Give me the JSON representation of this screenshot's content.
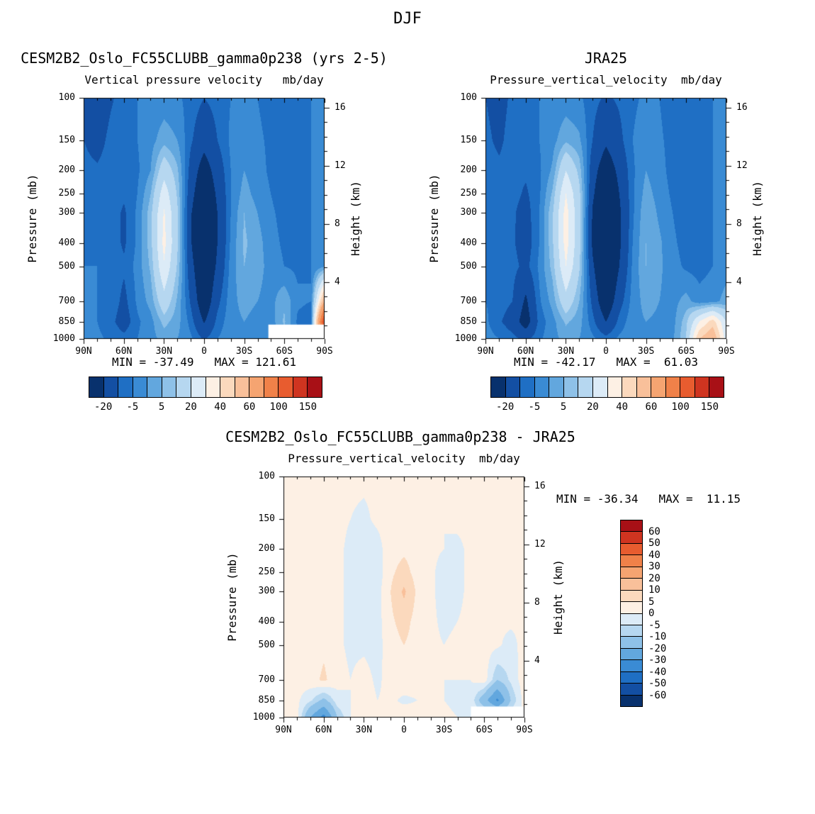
{
  "page": {
    "title": "DJF"
  },
  "axis": {
    "pressure_label": "Pressure (mb)",
    "height_label": "Height (km)",
    "pressure_ticks": [
      100,
      150,
      200,
      250,
      300,
      400,
      500,
      700,
      850,
      1000
    ],
    "height_ticks": [
      16,
      12,
      8,
      4
    ],
    "lat_tick_values": [
      90,
      60,
      30,
      0,
      -30,
      -60,
      -90
    ],
    "lat_tick_labels": [
      "90N",
      "60N",
      "30N",
      "0",
      "30S",
      "60S",
      "90S"
    ]
  },
  "colors": {
    "palette": [
      "#08316d",
      "#134fa3",
      "#1f6fc4",
      "#3a8bd4",
      "#62a7de",
      "#8ec1e8",
      "#b6d7f0",
      "#dcebf7",
      "#fdf0e4",
      "#fbd9bd",
      "#f9c09a",
      "#f5a471",
      "#f08149",
      "#e85c2f",
      "#cf3420",
      "#a81016"
    ],
    "edges": [
      -20,
      -10,
      -5,
      0,
      5,
      10,
      20,
      30,
      40,
      50,
      60,
      80,
      100,
      125,
      150
    ],
    "diff_edges": [
      -60,
      -50,
      -40,
      -30,
      -20,
      -10,
      -5,
      0,
      5,
      10,
      20,
      30,
      40,
      50,
      60
    ]
  },
  "colorbar": {
    "horizontal_labels": [
      "-20",
      "-5",
      "5",
      "20",
      "40",
      "60",
      "100",
      "150"
    ],
    "vertical_labels": [
      "60",
      "50",
      "40",
      "30",
      "20",
      "10",
      "5",
      "0",
      "-5",
      "-10",
      "-20",
      "-30",
      "-40",
      "-50",
      "-60"
    ]
  },
  "panels": {
    "model": {
      "title": "CESM2B2_Oslo_FC55CLUBB_gamma0p238 (yrs 2-5)",
      "subtitle": "Vertical pressure velocity   mb/day",
      "minmax": "MIN = -37.49   MAX = 121.61"
    },
    "obs": {
      "title": "JRA25",
      "subtitle": "Pressure_vertical_velocity  mb/day",
      "minmax": "MIN = -42.17   MAX =  61.03"
    },
    "diff": {
      "title": "CESM2B2_Oslo_FC55CLUBB_gamma0p238 - JRA25",
      "subtitle": "Pressure_vertical_velocity  mb/day",
      "minmax": "MIN = -36.34   MAX =  11.15"
    }
  },
  "chart_data": [
    {
      "key": "model",
      "name": "CESM2B2_Oslo_FC55CLUBB_gamma0p238 (yrs 2-5)",
      "type": "heatmap",
      "quantity": "Vertical pressure velocity",
      "units": "mb/day",
      "min": -37.49,
      "max": 121.61,
      "x_latitudes": [
        90,
        80,
        70,
        60,
        50,
        40,
        30,
        20,
        10,
        0,
        -10,
        -20,
        -30,
        -40,
        -50,
        -60,
        -70,
        -80,
        -90
      ],
      "y_pressures_mb": [
        100,
        150,
        200,
        250,
        300,
        400,
        500,
        700,
        850,
        1000
      ],
      "values": [
        [
          -12,
          -16,
          -11,
          -7,
          -5,
          -4,
          -3,
          -4,
          -7,
          -10,
          -8,
          -5,
          -4,
          -5,
          -7,
          -9,
          -6,
          -5,
          -4
        ],
        [
          -10,
          -13,
          -8,
          -6,
          -5,
          -2,
          3,
          0,
          -9,
          -16,
          -10,
          -4,
          -2,
          -4,
          -6,
          -8,
          -6,
          -5,
          -4
        ],
        [
          -8,
          -9,
          -7,
          -8,
          -6,
          0,
          16,
          6,
          -13,
          -26,
          -15,
          -5,
          0,
          -3,
          -6,
          -8,
          -6,
          -5,
          -4
        ],
        [
          -7,
          -7,
          -7,
          -9,
          -5,
          5,
          26,
          9,
          -16,
          -31,
          -18,
          -5,
          2,
          -2,
          -5,
          -8,
          -6,
          -5,
          -4
        ],
        [
          -6,
          -6,
          -7,
          -11,
          -4,
          8,
          31,
          11,
          -19,
          -34,
          -20,
          -5,
          5,
          0,
          -4,
          -7,
          -6,
          -5,
          -3
        ],
        [
          -5,
          -6,
          -7,
          -11,
          -4,
          8,
          33,
          11,
          -19,
          -36,
          -20,
          -4,
          6,
          2,
          -3,
          -6,
          -6,
          -5,
          -2
        ],
        [
          -5,
          -5,
          -6,
          -9,
          -3,
          6,
          29,
          9,
          -16,
          -33,
          -18,
          -3,
          5,
          2,
          -2,
          -5,
          -6,
          -5,
          -1
        ],
        [
          -4,
          -5,
          -6,
          -12,
          -4,
          2,
          16,
          4,
          -11,
          -29,
          -12,
          -2,
          2,
          0,
          -2,
          4,
          -4,
          -5,
          60
        ],
        [
          -4,
          -5,
          -8,
          -14,
          -6,
          -2,
          7,
          2,
          -7,
          -21,
          -8,
          -2,
          0,
          -2,
          -3,
          6,
          -6,
          -8,
          122
        ],
        [
          -3,
          -4,
          -6,
          -8,
          -5,
          -2,
          2,
          0,
          -4,
          -11,
          -5,
          -2,
          -1,
          -2,
          -2,
          2,
          -4,
          -8,
          100
        ]
      ],
      "missing": [
        {
          "lat": [
            -48,
            -90
          ],
          "p": [
            872,
            1000
          ]
        }
      ]
    },
    {
      "key": "obs",
      "name": "JRA25",
      "type": "heatmap",
      "quantity": "Pressure_vertical_velocity",
      "units": "mb/day",
      "min": -42.17,
      "max": 61.03,
      "x_latitudes": [
        90,
        80,
        70,
        60,
        50,
        40,
        30,
        20,
        10,
        0,
        -10,
        -20,
        -30,
        -40,
        -50,
        -60,
        -70,
        -80,
        -90
      ],
      "y_pressures_mb": [
        100,
        150,
        200,
        250,
        300,
        400,
        500,
        700,
        850,
        1000
      ],
      "values": [
        [
          -10,
          -12,
          -9,
          -6,
          -5,
          -4,
          -3,
          -4,
          -8,
          -11,
          -9,
          -6,
          -4,
          -5,
          -8,
          -9,
          -7,
          -5,
          -4
        ],
        [
          -9,
          -11,
          -8,
          -6,
          -5,
          -2,
          4,
          1,
          -10,
          -18,
          -12,
          -5,
          -2,
          -4,
          -7,
          -9,
          -7,
          -5,
          -4
        ],
        [
          -8,
          -9,
          -8,
          -9,
          -6,
          1,
          20,
          8,
          -15,
          -28,
          -17,
          -6,
          0,
          -3,
          -7,
          -9,
          -7,
          -5,
          -4
        ],
        [
          -7,
          -8,
          -8,
          -11,
          -6,
          6,
          30,
          12,
          -18,
          -34,
          -20,
          -6,
          2,
          -2,
          -6,
          -8,
          -7,
          -5,
          -4
        ],
        [
          -6,
          -7,
          -9,
          -13,
          -5,
          9,
          34,
          13,
          -21,
          -40,
          -22,
          -6,
          4,
          -1,
          -5,
          -8,
          -7,
          -5,
          -3
        ],
        [
          -6,
          -7,
          -9,
          -14,
          -5,
          9,
          34,
          13,
          -22,
          -42,
          -22,
          -5,
          5,
          1,
          -4,
          -7,
          -7,
          -5,
          -3
        ],
        [
          -5,
          -6,
          -8,
          -12,
          -4,
          7,
          30,
          11,
          -18,
          -37,
          -20,
          -4,
          5,
          1,
          -3,
          -6,
          -7,
          -5,
          -2
        ],
        [
          -5,
          -7,
          -10,
          -22,
          -6,
          2,
          16,
          5,
          -12,
          -30,
          -13,
          -3,
          2,
          0,
          -2,
          2,
          -3,
          -2,
          2
        ],
        [
          -4,
          -9,
          -14,
          -26,
          -8,
          -2,
          6,
          2,
          -8,
          -20,
          -8,
          -2,
          0,
          -1,
          -2,
          8,
          30,
          45,
          20
        ],
        [
          -3,
          -5,
          -8,
          -12,
          -6,
          -2,
          2,
          0,
          -4,
          -8,
          -4,
          -2,
          -1,
          -1,
          -1,
          10,
          50,
          61,
          25
        ]
      ],
      "missing": []
    },
    {
      "key": "diff",
      "name": "CESM2B2_Oslo_FC55CLUBB_gamma0p238 - JRA25",
      "type": "heatmap",
      "quantity": "Pressure_vertical_velocity difference",
      "units": "mb/day",
      "min": -36.34,
      "max": 11.15,
      "x_latitudes": [
        90,
        80,
        70,
        60,
        50,
        40,
        30,
        20,
        10,
        0,
        -10,
        -20,
        -30,
        -40,
        -50,
        -60,
        -70,
        -80,
        -90
      ],
      "y_pressures_mb": [
        100,
        150,
        200,
        250,
        300,
        400,
        500,
        700,
        850,
        1000
      ],
      "values": [
        [
          2,
          2,
          1,
          1,
          1,
          1,
          1,
          1,
          2,
          2,
          2,
          1,
          1,
          1,
          2,
          2,
          1,
          1,
          1
        ],
        [
          2,
          2,
          1,
          1,
          1,
          0,
          -1,
          1,
          2,
          3,
          2,
          1,
          0,
          1,
          1,
          1,
          1,
          1,
          1
        ],
        [
          2,
          1,
          1,
          2,
          1,
          -1,
          -3,
          -2,
          3,
          4,
          3,
          1,
          0,
          -1,
          1,
          2,
          1,
          1,
          0
        ],
        [
          1,
          1,
          1,
          2,
          1,
          -1,
          -4,
          -3,
          4,
          7,
          3,
          1,
          -2,
          -1,
          1,
          2,
          1,
          1,
          0
        ],
        [
          1,
          1,
          2,
          3,
          1,
          -1,
          -3,
          -2,
          5,
          11,
          4,
          1,
          -2,
          -1,
          1,
          2,
          1,
          1,
          0
        ],
        [
          1,
          1,
          2,
          3,
          1,
          -1,
          -2,
          -2,
          4,
          7,
          3,
          1,
          -1,
          0,
          1,
          2,
          1,
          1,
          1
        ],
        [
          1,
          1,
          2,
          4,
          1,
          -1,
          -1,
          -2,
          3,
          5,
          3,
          1,
          0,
          1,
          1,
          2,
          1,
          -2,
          2
        ],
        [
          1,
          2,
          3,
          6,
          2,
          0,
          2,
          -1,
          2,
          3,
          2,
          1,
          0,
          0,
          0,
          3,
          -10,
          -4,
          3
        ],
        [
          0,
          1,
          -4,
          -12,
          -2,
          0,
          3,
          0,
          1,
          -1,
          0,
          0,
          0,
          -1,
          -1,
          -16,
          -32,
          -10,
          2
        ],
        [
          1,
          2,
          -20,
          -34,
          -10,
          0,
          3,
          2,
          1,
          3,
          2,
          1,
          1,
          0,
          null,
          null,
          null,
          null,
          null
        ]
      ],
      "missing": [
        {
          "lat": [
            -50,
            -90
          ],
          "p": [
            900,
            1000
          ]
        }
      ]
    }
  ]
}
